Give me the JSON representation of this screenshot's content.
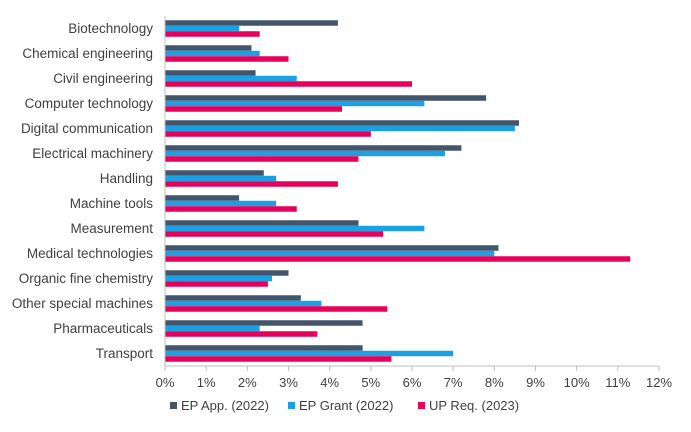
{
  "chart_data": {
    "type": "bar",
    "orientation": "horizontal",
    "categories": [
      "Biotechnology",
      "Chemical engineering",
      "Civil engineering",
      "Computer technology",
      "Digital communication",
      "Electrical machinery",
      "Handling",
      "Machine tools",
      "Measurement",
      "Medical technologies",
      "Organic fine chemistry",
      "Other special machines",
      "Pharmaceuticals",
      "Transport"
    ],
    "series": [
      {
        "name": "EP App. (2022)",
        "color": "#44546a",
        "values": [
          4.2,
          2.1,
          2.2,
          7.8,
          8.6,
          7.2,
          2.4,
          1.8,
          4.7,
          8.1,
          3.0,
          3.3,
          4.8,
          4.8
        ]
      },
      {
        "name": "EP Grant (2022)",
        "color": "#1ba1e2",
        "values": [
          1.8,
          2.3,
          3.2,
          6.3,
          8.5,
          6.8,
          2.7,
          2.7,
          6.3,
          8.0,
          2.6,
          3.8,
          2.3,
          7.0
        ]
      },
      {
        "name": "UP Req. (2023)",
        "color": "#e6005c",
        "values": [
          2.3,
          3.0,
          6.0,
          4.3,
          5.0,
          4.7,
          4.2,
          3.2,
          5.3,
          11.3,
          2.5,
          5.4,
          3.7,
          5.5
        ]
      }
    ],
    "x_ticks": [
      "0%",
      "1%",
      "2%",
      "3%",
      "4%",
      "5%",
      "6%",
      "7%",
      "8%",
      "9%",
      "10%",
      "11%",
      "12%"
    ],
    "xlim": [
      0,
      12
    ],
    "unit": "%",
    "grid": false,
    "legend_position": "bottom",
    "title": "",
    "xlabel": "",
    "ylabel": ""
  }
}
